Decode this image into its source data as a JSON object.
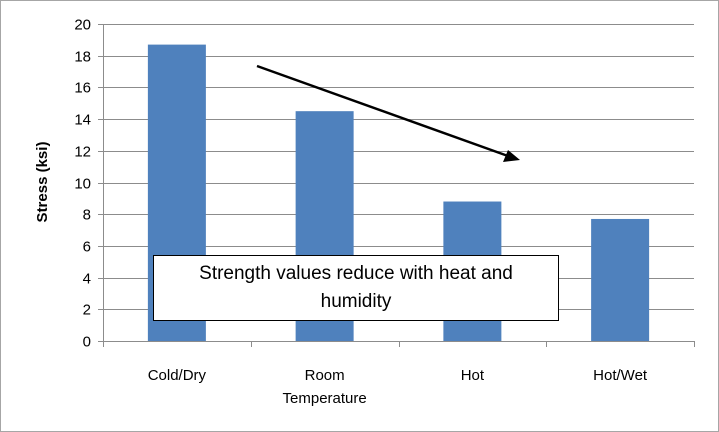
{
  "chart_data": {
    "type": "bar",
    "title": "",
    "xlabel": "",
    "ylabel": "Stress (ksi)",
    "categories": [
      "Cold/Dry",
      "Room Temperature",
      "Hot",
      "Hot/Wet"
    ],
    "values": [
      18.7,
      14.5,
      8.8,
      7.7
    ],
    "ylim": [
      0,
      20
    ],
    "yticks": [
      0,
      2,
      4,
      6,
      8,
      10,
      12,
      14,
      16,
      18,
      20
    ],
    "grid": true,
    "legend": false,
    "bar_color": "#4f81bd",
    "annotations": [
      {
        "text": "Strength values reduce with heat and humidity"
      }
    ]
  }
}
